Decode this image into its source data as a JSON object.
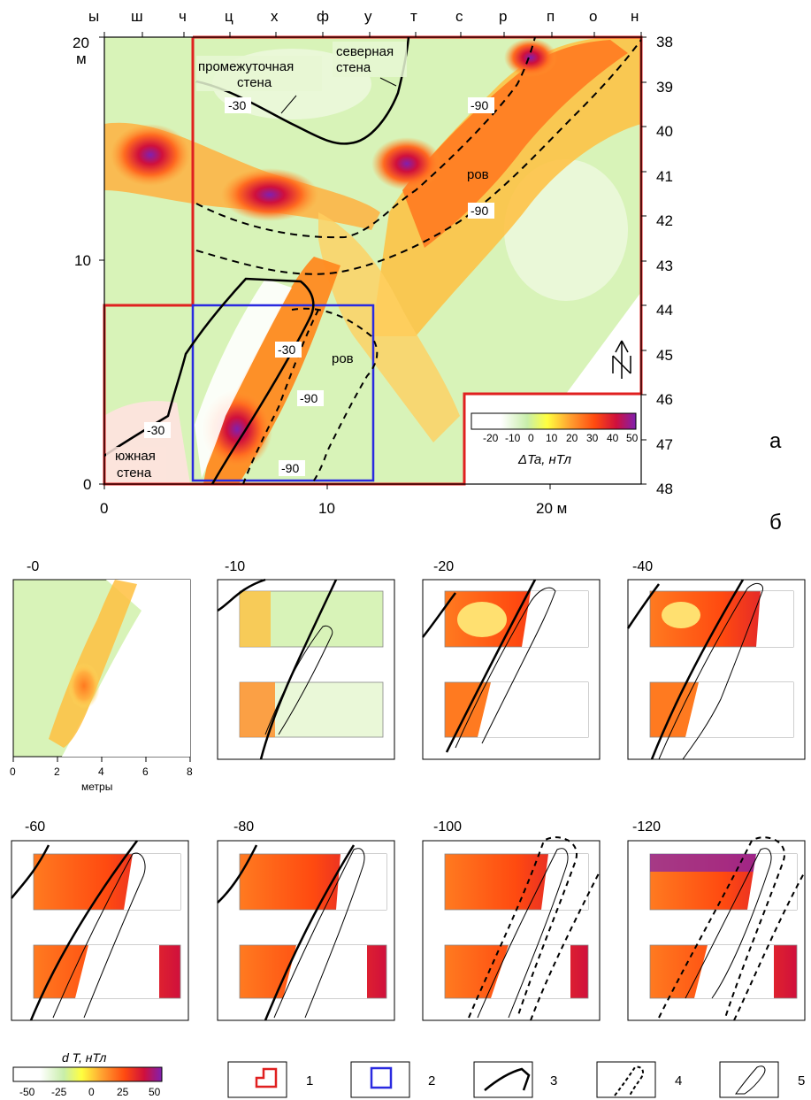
{
  "panel_a": {
    "top_letters": [
      "ы",
      "ш",
      "ч",
      "ц",
      "х",
      "ф",
      "у",
      "т",
      "с",
      "р",
      "п",
      "о",
      "н"
    ],
    "left_ticks": [
      "20",
      "10",
      "0"
    ],
    "left_unit": "м",
    "bottom_ticks": [
      "0",
      "10",
      "20 м"
    ],
    "right_ticks": [
      "38",
      "39",
      "40",
      "41",
      "42",
      "43",
      "44",
      "45",
      "46",
      "47",
      "48"
    ],
    "labels": {
      "intermediate_wall": [
        "промежуточная",
        "стена"
      ],
      "north_wall": [
        "северная",
        "стена"
      ],
      "south_wall": [
        "южная",
        "стена"
      ],
      "moat_1": "ров",
      "moat_2": "ров"
    },
    "contours": [
      "-30",
      "-90",
      "-90",
      "-30",
      "-90",
      "-30",
      "-90"
    ],
    "colorbar": {
      "ticks": [
        "-20",
        "-10",
        "0",
        "10",
        "20",
        "30",
        "40",
        "50"
      ],
      "title": "ΔTa, нТл",
      "colors": [
        "#ffffff",
        "#c8eeaa",
        "#ffff40",
        "#ffa030",
        "#ff4a10",
        "#d0103c",
        "#8020b0"
      ]
    },
    "letter": "а"
  },
  "panel_b": {
    "letter": "б",
    "depths": [
      "-0",
      "-10",
      "-20",
      "-40",
      "-60",
      "-80",
      "-100",
      "-120"
    ],
    "x_ticks": [
      "0",
      "2",
      "4",
      "6",
      "8"
    ],
    "x_label": "метры",
    "colorbar": {
      "title": "d T, нТл",
      "ticks": [
        "-50",
        "-25",
        "0",
        "25",
        "50"
      ]
    },
    "legend": [
      "1",
      "2",
      "3",
      "4",
      "5"
    ]
  }
}
